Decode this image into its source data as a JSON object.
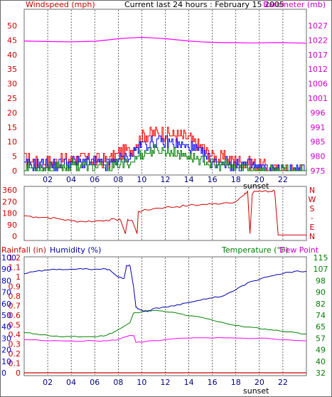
{
  "header": {
    "left_label": "Windspeed (mph)",
    "title": "Current last 24 hours : February 15 2005",
    "right_label": "Barometer (mb)"
  },
  "dir_panel": {
    "right_labels": [
      "N",
      "W",
      "S",
      "-",
      "E",
      "N"
    ]
  },
  "bottom_header": {
    "rain_label": "Rainfall (in)",
    "humidity_label": "Humidity (%)",
    "temp_label": "Temperature (°F)",
    "dew_label": "Dew Point"
  },
  "sunset_label": "sunset",
  "colors": {
    "wind_gust": "#ff0000",
    "wind_avg": "#0000ff",
    "wind_low": "#008000",
    "barometer": "#ff00ff",
    "direction": "#cc0000",
    "humidity": "#0000aa",
    "temperature": "#008000",
    "dewpoint": "#ff00ff",
    "rain": "#cc0000",
    "axis_left_red": "#cc0000",
    "axis_left_blue": "#0000cc",
    "grid": "#000000"
  },
  "chart_data": [
    {
      "type": "line",
      "title": "Current last 24 hours : February 15 2005",
      "x_ticks": [
        "02",
        "04",
        "06",
        "08",
        "10",
        "12",
        "14",
        "16",
        "18",
        "20",
        "22"
      ],
      "y_left_label": "Windspeed (mph)",
      "y_left_ticks": [
        "0",
        "5",
        "10",
        "15",
        "20",
        "25",
        "30",
        "35",
        "40",
        "45",
        "50"
      ],
      "ylim_left": [
        0,
        50
      ],
      "y_right_label": "Barometer (mb)",
      "y_right_ticks": [
        "975",
        "980",
        "985",
        "991",
        "996",
        "1001",
        "1006",
        "1012",
        "1017",
        "1022",
        "1027"
      ],
      "ylim_right": [
        975,
        1027
      ],
      "grid": "vertical dashed",
      "barometer": {
        "x": [
          0,
          2,
          4,
          6,
          7,
          8,
          9,
          10,
          11,
          12,
          13,
          14,
          15,
          16,
          17,
          18,
          19,
          20,
          21,
          22,
          23,
          24
        ],
        "y": [
          1021.5,
          1021.3,
          1021.2,
          1021.4,
          1021.8,
          1022.3,
          1022.6,
          1022.8,
          1022.6,
          1022.3,
          1021.9,
          1021.5,
          1021.2,
          1021.0,
          1020.9,
          1020.9,
          1020.8,
          1020.8,
          1020.9,
          1020.9,
          1020.8,
          1020.7
        ]
      },
      "wind_gust_profile": {
        "x": [
          0,
          1,
          2,
          3,
          4,
          5,
          6,
          7,
          8,
          9,
          10,
          11,
          12,
          13,
          14,
          15,
          16,
          17,
          18,
          19,
          20,
          21,
          22,
          23,
          24
        ],
        "y": [
          4,
          3,
          3,
          3,
          4,
          4,
          4,
          3,
          6,
          7,
          12,
          13,
          13,
          12,
          11,
          8,
          5,
          4,
          3,
          3,
          2,
          0,
          0,
          0,
          0
        ]
      },
      "wind_avg_profile": {
        "x": [
          0,
          1,
          2,
          3,
          4,
          5,
          6,
          7,
          8,
          9,
          10,
          11,
          12,
          13,
          14,
          15,
          16,
          17,
          18,
          19,
          20,
          21,
          22,
          23,
          24
        ],
        "y": [
          2,
          2,
          2,
          2,
          3,
          3,
          3,
          2,
          4,
          5,
          9,
          10,
          10,
          9,
          8,
          6,
          3,
          3,
          2,
          2,
          1,
          0,
          0,
          0,
          0
        ]
      },
      "wind_low_profile": {
        "x": [
          0,
          1,
          2,
          3,
          4,
          5,
          6,
          7,
          8,
          9,
          10,
          11,
          12,
          13,
          14,
          15,
          16,
          17,
          18,
          19,
          20,
          21,
          22,
          23,
          24
        ],
        "y": [
          1,
          1,
          1,
          1,
          2,
          2,
          1,
          1,
          2,
          3,
          6,
          7,
          7,
          6,
          5,
          4,
          2,
          2,
          1,
          1,
          0,
          0,
          0,
          0,
          0
        ]
      }
    },
    {
      "type": "line",
      "y_ticks": [
        "360",
        "270",
        "180",
        "90",
        "0"
      ],
      "ylim": [
        0,
        360
      ],
      "direction": {
        "x": [
          0,
          1,
          2,
          3,
          4,
          5,
          6,
          7,
          7.8,
          8.2,
          8.6,
          8.8,
          9.2,
          9.6,
          9.7,
          10,
          11,
          12,
          13,
          14,
          15,
          16,
          17,
          18,
          18.7,
          19.0,
          19.2,
          19.4,
          19.6,
          20,
          21,
          21.3,
          21.6,
          22,
          23,
          24
        ],
        "y": [
          160,
          150,
          145,
          135,
          120,
          115,
          118,
          125,
          130,
          125,
          20,
          130,
          120,
          20,
          190,
          195,
          215,
          225,
          230,
          240,
          245,
          250,
          260,
          270,
          320,
          350,
          20,
          330,
          350,
          352,
          350,
          352,
          10,
          10,
          10,
          10
        ]
      }
    },
    {
      "type": "line",
      "x_ticks": [
        "02",
        "04",
        "06",
        "08",
        "10",
        "12",
        "14",
        "16",
        "18",
        "20",
        "22"
      ],
      "rain_ticks": [
        "0",
        "0.1",
        "0.2",
        "0.3",
        "0.4",
        "0.5",
        "0.6",
        "0.7",
        "0.8",
        "0.9",
        "1",
        "1.1",
        "1.2"
      ],
      "rain_ylim": [
        0,
        1.2
      ],
      "humidity_ticks": [
        "0",
        "10",
        "20",
        "30",
        "40",
        "50",
        "60",
        "70",
        "80",
        "90",
        "100"
      ],
      "humidity_ylim": [
        0,
        100
      ],
      "temp_ticks": [
        "32",
        "40",
        "49",
        "57",
        "65",
        "74",
        "82",
        "90",
        "98",
        "107",
        "115"
      ],
      "temp_ylim": [
        32,
        115
      ],
      "humidity": {
        "x": [
          0,
          1,
          2,
          3,
          4,
          5,
          6,
          7,
          7.3,
          8,
          8.5,
          8.7,
          9.0,
          9.3,
          9.5,
          9.8,
          10.5,
          11,
          12,
          13,
          14,
          15,
          16,
          17,
          18,
          19,
          20,
          21,
          22,
          23,
          24
        ],
        "y": [
          86,
          88,
          89,
          90,
          90,
          90,
          90,
          90,
          89,
          83,
          82,
          93,
          93,
          75,
          57,
          55,
          53,
          56,
          57,
          59,
          61,
          63,
          65,
          67,
          72,
          78,
          81,
          84,
          86,
          88,
          88
        ]
      },
      "temperature": {
        "x": [
          0,
          1,
          2,
          3,
          4,
          5,
          6,
          7,
          8,
          9,
          9.3,
          10,
          11,
          12,
          13,
          14,
          15,
          16,
          17,
          18,
          19,
          20,
          21,
          22,
          23,
          24
        ],
        "y": [
          61,
          60,
          59,
          58,
          58,
          58,
          58,
          59,
          63,
          68,
          75,
          76,
          77,
          76,
          75,
          73,
          72,
          70,
          68,
          66,
          65,
          64,
          63,
          62,
          61,
          60
        ]
      },
      "dewpoint": {
        "x": [
          0,
          2,
          4,
          6,
          7,
          8,
          9,
          9.3,
          9.5,
          10,
          12,
          14,
          16,
          18,
          20,
          22,
          24
        ],
        "y": [
          56,
          55,
          55,
          55,
          55,
          56,
          59,
          59,
          54,
          54,
          56,
          57,
          57,
          57,
          57,
          56,
          55
        ]
      },
      "rain": {
        "x": [
          0,
          24
        ],
        "y": [
          0,
          0
        ]
      }
    }
  ]
}
